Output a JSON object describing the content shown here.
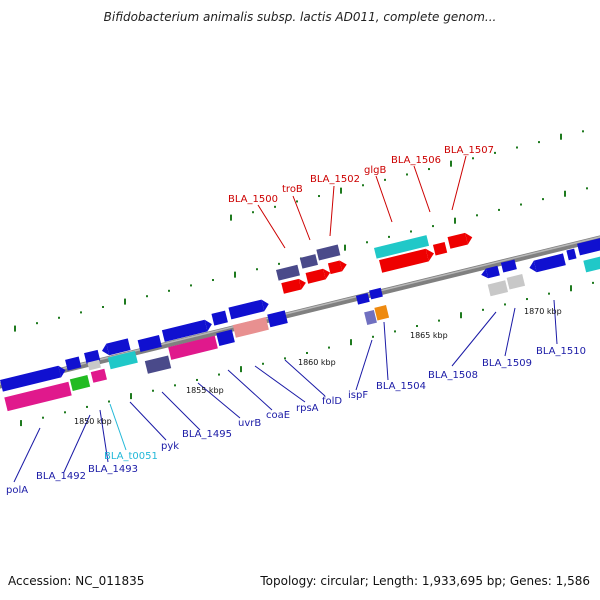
{
  "title": "Bifidobacterium animalis subsp. lactis AD011, complete genom...",
  "accession": "Accession: NC_011835",
  "summary": "Topology: circular; Length: 1,933,695 bp; Genes: 1,586",
  "colors": {
    "label_red": "#cc0000",
    "label_blue": "#1a1aa6",
    "label_cyan": "#22b8d8",
    "backbone": "#808080",
    "tick": "#1e7a1e"
  },
  "scale_labels": [
    "1850 kbp",
    "1855 kbp",
    "1860 kbp",
    "1865 kbp",
    "1870 kbp"
  ],
  "gene_labels_top": [
    "BLA_1500",
    "troB",
    "BLA_1502",
    "glgB",
    "BLA_1506",
    "BLA_1507"
  ],
  "gene_labels_bottom": [
    "polA",
    "BLA_1492",
    "BLA_1493",
    "BLA_t0051",
    "pyk",
    "BLA_1495",
    "uvrB",
    "coaE",
    "rpsA",
    "folD",
    "ispF",
    "BLA_1504",
    "BLA_1508",
    "BLA_1509",
    "BLA_1510"
  ]
}
